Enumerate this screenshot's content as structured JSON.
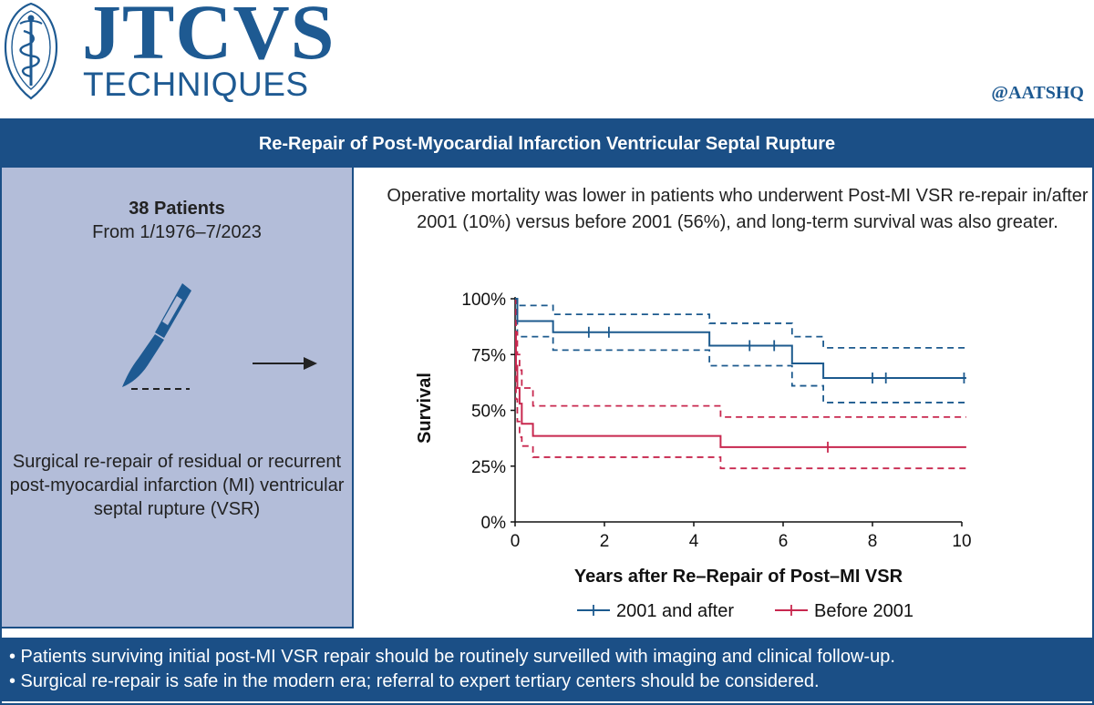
{
  "header": {
    "brand_main": "JTCVS",
    "brand_sub": "TECHNIQUES",
    "handle": "@AATSHQ"
  },
  "title": "Re-Repair of Post-Myocardial Infarction Ventricular Septal Rupture",
  "left_panel": {
    "patients_count": "38 Patients",
    "patients_range": "From 1/1976–7/2023",
    "procedure_text": "Surgical re-repair of residual or recurrent post-myocardial infarction (MI) ventricular septal rupture (VSR)"
  },
  "finding_text": "Operative mortality was lower in patients who underwent Post-MI VSR re-repair in/after 2001 (10%) versus before 2001 (56%), and long-term survival was also greater.",
  "colors": {
    "brand": "#1e5a92",
    "bar": "#1b4f86",
    "panel": "#b3bdd9",
    "series_after": "#1c5a8e",
    "series_before": "#c8284f"
  },
  "icons": {
    "logo": "caduceus-seal-icon",
    "procedure": "scalpel-icon",
    "flow": "arrow-right-icon"
  },
  "chart_data": {
    "type": "line",
    "subtype": "kaplan-meier",
    "xlabel": "Years after Re–Repair of Post–MI VSR",
    "ylabel": "Survival",
    "xlim": [
      0,
      10
    ],
    "ylim": [
      0,
      100
    ],
    "xticks": [
      0,
      2,
      4,
      6,
      8,
      10
    ],
    "yticks": [
      0,
      25,
      50,
      75,
      100
    ],
    "ytick_labels": [
      "0%",
      "25%",
      "50%",
      "75%",
      "100%"
    ],
    "legend_position": "bottom",
    "series": [
      {
        "name": "2001 and after",
        "color": "#1c5a8e",
        "steps": [
          [
            0,
            100
          ],
          [
            0.05,
            90
          ],
          [
            0.85,
            85
          ],
          [
            4.35,
            79
          ],
          [
            6.2,
            71
          ],
          [
            6.9,
            64.5
          ],
          [
            10.1,
            64.5
          ]
        ],
        "censors": [
          [
            1.65,
            85
          ],
          [
            2.1,
            85
          ],
          [
            5.25,
            79
          ],
          [
            5.8,
            79
          ],
          [
            8.0,
            64.5
          ],
          [
            8.3,
            64.5
          ],
          [
            10.05,
            64.5
          ]
        ],
        "ci_upper": [
          [
            0,
            100
          ],
          [
            0.05,
            97
          ],
          [
            0.85,
            93
          ],
          [
            4.35,
            89
          ],
          [
            6.2,
            83
          ],
          [
            6.9,
            78
          ],
          [
            10.1,
            78
          ]
        ],
        "ci_lower": [
          [
            0,
            100
          ],
          [
            0.05,
            83
          ],
          [
            0.85,
            77
          ],
          [
            4.35,
            70
          ],
          [
            6.2,
            61
          ],
          [
            6.9,
            53.5
          ],
          [
            10.1,
            53.5
          ]
        ]
      },
      {
        "name": "Before 2001",
        "color": "#c8284f",
        "steps": [
          [
            0,
            85
          ],
          [
            0.02,
            70
          ],
          [
            0.05,
            60
          ],
          [
            0.1,
            53
          ],
          [
            0.15,
            44
          ],
          [
            0.4,
            38.5
          ],
          [
            4.6,
            33.5
          ],
          [
            10.1,
            33.5
          ]
        ],
        "censors": [
          [
            7.0,
            33.5
          ]
        ],
        "ci_upper": [
          [
            0,
            100
          ],
          [
            0.02,
            85
          ],
          [
            0.05,
            75
          ],
          [
            0.1,
            68
          ],
          [
            0.15,
            60
          ],
          [
            0.4,
            52
          ],
          [
            4.6,
            47
          ],
          [
            10.1,
            47
          ]
        ],
        "ci_lower": [
          [
            0,
            70
          ],
          [
            0.02,
            55
          ],
          [
            0.05,
            45
          ],
          [
            0.1,
            38
          ],
          [
            0.15,
            34
          ],
          [
            0.4,
            29
          ],
          [
            4.6,
            24
          ],
          [
            10.1,
            24
          ]
        ]
      }
    ]
  },
  "bullets": [
    "• Patients surviving initial post-MI VSR repair should be routinely surveilled with imaging and clinical follow-up.",
    "• Surgical re-repair is safe in the modern era; referral to expert tertiary centers should be considered."
  ]
}
